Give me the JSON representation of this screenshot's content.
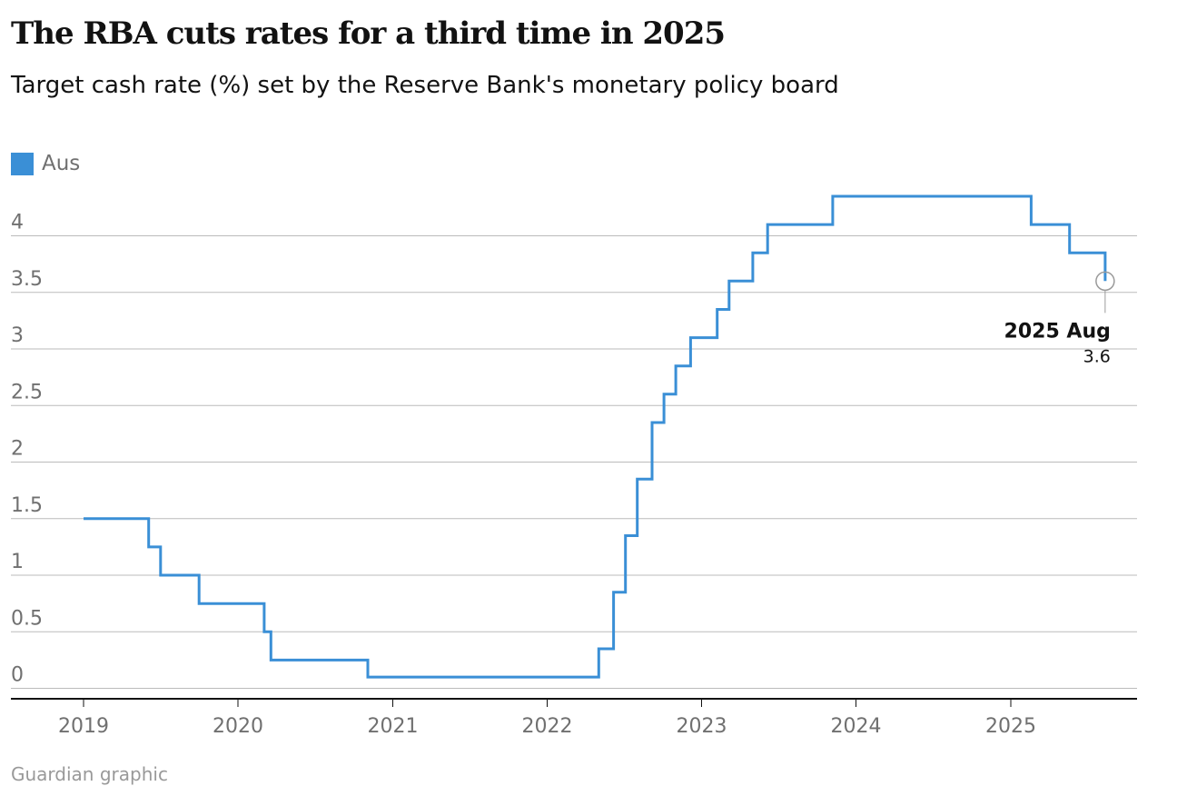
{
  "header": {
    "title": "The RBA cuts rates for a third time in 2025",
    "subtitle": "Target cash rate (%) set by the Reserve Bank's monetary policy board"
  },
  "legend": {
    "label": "Aus",
    "color": "#3a8fd6"
  },
  "footer": {
    "source": "Guardian graphic"
  },
  "colors": {
    "line": "#3a8fd6",
    "grid": "#bbbbbb",
    "axis": "#121212",
    "annotation_marker": "#9a9a9a"
  },
  "chart_data": {
    "type": "line",
    "step": true,
    "series": [
      {
        "name": "Aus",
        "points": [
          [
            "2019-01-01",
            1.5
          ],
          [
            "2019-06-04",
            1.25
          ],
          [
            "2019-07-02",
            1.0
          ],
          [
            "2019-10-01",
            0.75
          ],
          [
            "2020-03-03",
            0.5
          ],
          [
            "2020-03-19",
            0.25
          ],
          [
            "2020-11-03",
            0.1
          ],
          [
            "2022-05-03",
            0.35
          ],
          [
            "2022-06-07",
            0.85
          ],
          [
            "2022-07-05",
            1.35
          ],
          [
            "2022-08-02",
            1.85
          ],
          [
            "2022-09-06",
            2.35
          ],
          [
            "2022-10-04",
            2.6
          ],
          [
            "2022-11-01",
            2.85
          ],
          [
            "2022-12-06",
            3.1
          ],
          [
            "2023-02-07",
            3.35
          ],
          [
            "2023-03-07",
            3.6
          ],
          [
            "2023-05-02",
            3.85
          ],
          [
            "2023-06-06",
            4.1
          ],
          [
            "2023-11-07",
            4.35
          ],
          [
            "2025-02-18",
            4.1
          ],
          [
            "2025-05-20",
            3.85
          ],
          [
            "2025-08-12",
            3.6
          ]
        ]
      }
    ],
    "x_ticks": [
      "2019",
      "2020",
      "2021",
      "2022",
      "2023",
      "2024",
      "2025"
    ],
    "y_ticks": [
      "0",
      "0.5",
      "1",
      "1.5",
      "2",
      "2.5",
      "3",
      "3.5",
      "4"
    ],
    "xlim": [
      "2019-01-01",
      "2025-10-01"
    ],
    "ylim": [
      -0.1,
      4.4
    ],
    "grid": true,
    "legend_position": "top-left",
    "annotation": {
      "label": "2025 Aug",
      "value": "3.6"
    }
  }
}
